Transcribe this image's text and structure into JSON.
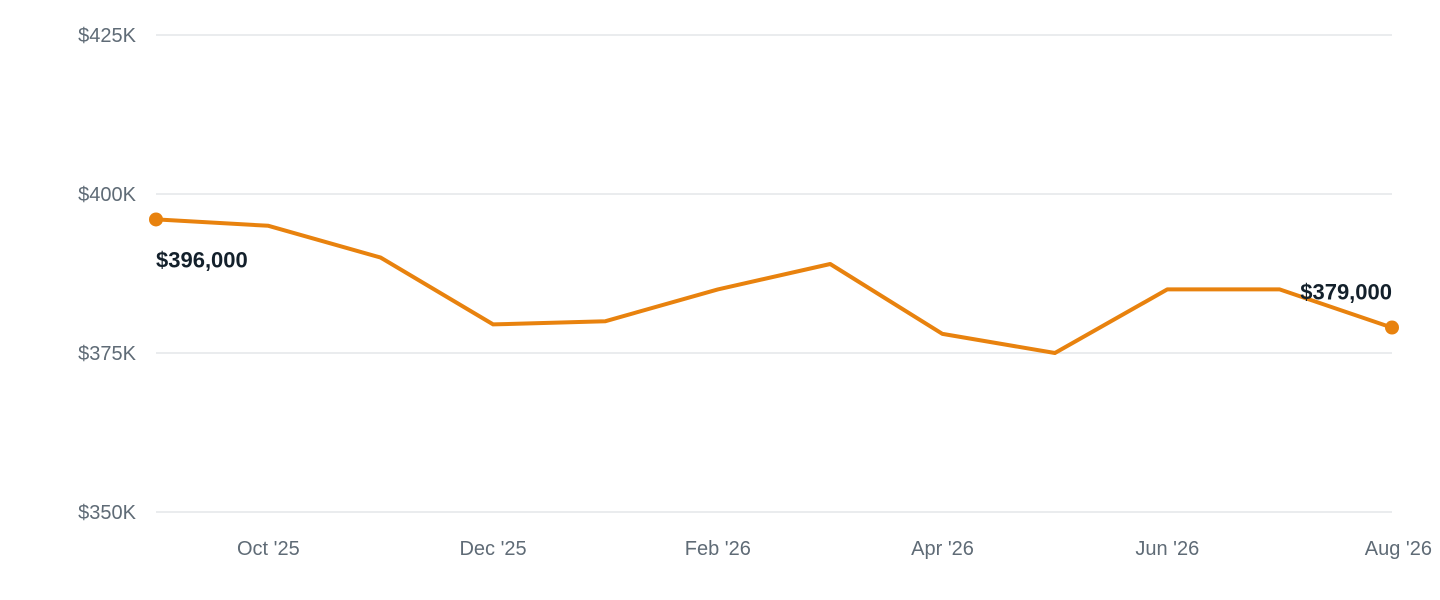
{
  "chart_data": {
    "type": "line",
    "title": "",
    "xlabel": "",
    "ylabel": "",
    "x": [
      "2025-09",
      "2025-10",
      "2025-11",
      "2025-12",
      "2026-01",
      "2026-02",
      "2026-03",
      "2026-04",
      "2026-05",
      "2026-06",
      "2026-07",
      "2026-08"
    ],
    "series": [
      {
        "values": [
          396000,
          395000,
          390000,
          379500,
          380000,
          385000,
          389000,
          378000,
          375000,
          385000,
          385000,
          379000
        ],
        "color": "#e8820e"
      }
    ],
    "ylim": [
      350000,
      425000
    ],
    "y_ticks": [
      {
        "value": 350000,
        "label": "$350K"
      },
      {
        "value": 375000,
        "label": "$375K"
      },
      {
        "value": 400000,
        "label": "$400K"
      },
      {
        "value": 425000,
        "label": "$425K"
      }
    ],
    "x_ticks": [
      {
        "x": "2025-10",
        "label": "Oct '25"
      },
      {
        "x": "2025-12",
        "label": "Dec '25"
      },
      {
        "x": "2026-02",
        "label": "Feb '26"
      },
      {
        "x": "2026-04",
        "label": "Apr '26"
      },
      {
        "x": "2026-06",
        "label": "Jun '26"
      },
      {
        "x": "2026-08",
        "label": "Aug '26"
      }
    ],
    "annotations": [
      {
        "x": "2025-09",
        "y": 396000,
        "text": "$396,000"
      },
      {
        "x": "2026-08",
        "y": 379000,
        "text": "$379,000"
      }
    ],
    "grid": true,
    "legend": "none"
  }
}
